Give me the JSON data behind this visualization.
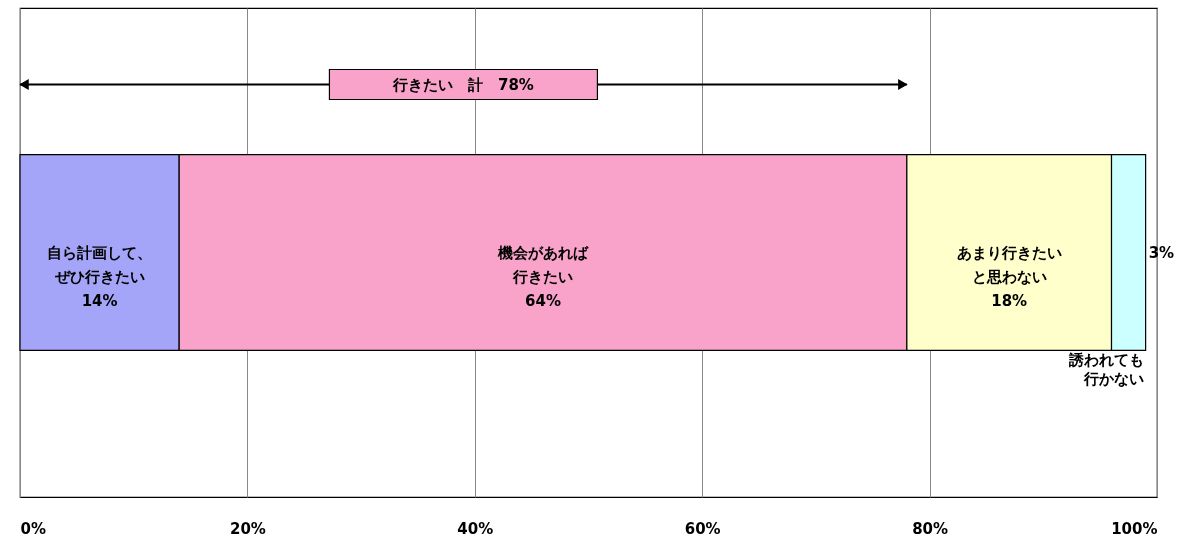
{
  "chart_data": {
    "type": "bar",
    "orientation": "horizontal",
    "stacked": true,
    "categories": [
      null
    ],
    "series": [
      {
        "name": "自ら計画して、ぜひ行きたい",
        "color": "#a4a4f8",
        "values": [
          14
        ],
        "value_labels": [
          "14%"
        ]
      },
      {
        "name": "機会があれば行きたい",
        "color": "#f9a3cb",
        "values": [
          64
        ],
        "value_labels": [
          "64%"
        ]
      },
      {
        "name": "あまり行きたいと思わない",
        "color": "#ffffcc",
        "values": [
          18
        ],
        "value_labels": [
          "18%"
        ]
      },
      {
        "name": "誘われても行かない",
        "color": "#ccffff",
        "values": [
          3
        ],
        "value_labels": [
          "3%"
        ]
      }
    ],
    "xlim": [
      0,
      100
    ],
    "xticks": [
      {
        "value": 0,
        "label": "0%"
      },
      {
        "value": 20,
        "label": "20%"
      },
      {
        "value": 40,
        "label": "40%"
      },
      {
        "value": 60,
        "label": "60%"
      },
      {
        "value": 80,
        "label": "80%"
      },
      {
        "value": 100,
        "label": "100%"
      }
    ],
    "grid": "x",
    "annotations": [
      "行きたい　計　78%"
    ]
  }
}
